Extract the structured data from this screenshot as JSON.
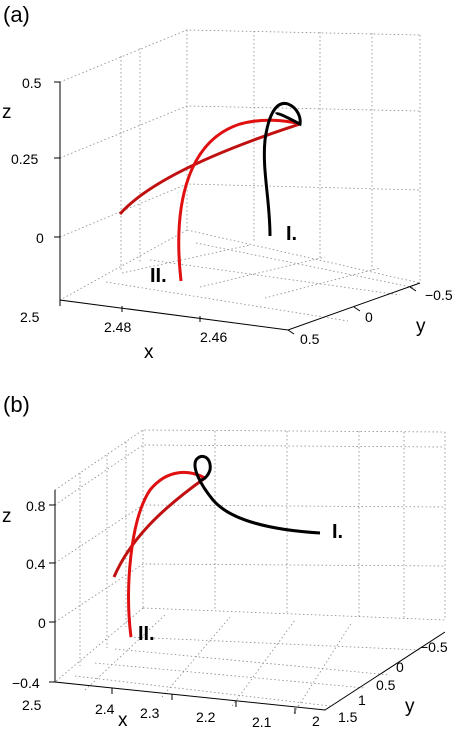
{
  "chart_data": [
    {
      "type": "line",
      "panel_label": "(a)",
      "xlabel": "x",
      "ylabel": "y",
      "zlabel": "z",
      "x_ticks": [
        "2.5",
        "2.48",
        "2.46"
      ],
      "y_ticks": [
        "−0.5",
        "0",
        "0.5"
      ],
      "z_ticks": [
        "0.5",
        "0.25",
        "0"
      ],
      "xlim": [
        2.445,
        2.5
      ],
      "ylim": [
        -0.5,
        0.5
      ],
      "zlim": [
        -0.15,
        0.5
      ],
      "grid": true,
      "series": [
        {
          "name": "I.",
          "color": "#000000",
          "points": [
            {
              "x": 2.452,
              "y": 0.05,
              "z": 0.0
            },
            {
              "x": 2.452,
              "y": 0.02,
              "z": 0.12
            },
            {
              "x": 2.454,
              "y": -0.05,
              "z": 0.24
            },
            {
              "x": 2.455,
              "y": -0.12,
              "z": 0.33
            },
            {
              "x": 2.452,
              "y": -0.2,
              "z": 0.39
            },
            {
              "x": 2.448,
              "y": -0.22,
              "z": 0.36
            },
            {
              "x": 2.45,
              "y": -0.18,
              "z": 0.31
            }
          ]
        },
        {
          "name": "II.",
          "color": "#e01010",
          "points": [
            {
              "x": 2.478,
              "y": 0.38,
              "z": -0.12
            },
            {
              "x": 2.476,
              "y": 0.3,
              "z": 0.06
            },
            {
              "x": 2.472,
              "y": 0.15,
              "z": 0.22
            },
            {
              "x": 2.465,
              "y": -0.02,
              "z": 0.31
            },
            {
              "x": 2.458,
              "y": -0.12,
              "z": 0.32
            },
            {
              "x": 2.45,
              "y": -0.18,
              "z": 0.31
            }
          ]
        },
        {
          "name": "",
          "color": "#c01010",
          "points": [
            {
              "x": 2.495,
              "y": 0.22,
              "z": 0.08
            },
            {
              "x": 2.49,
              "y": 0.12,
              "z": 0.17
            },
            {
              "x": 2.482,
              "y": 0.0,
              "z": 0.23
            },
            {
              "x": 2.472,
              "y": -0.08,
              "z": 0.27
            },
            {
              "x": 2.462,
              "y": -0.14,
              "z": 0.3
            },
            {
              "x": 2.45,
              "y": -0.18,
              "z": 0.31
            }
          ]
        }
      ]
    },
    {
      "type": "line",
      "panel_label": "(b)",
      "xlabel": "x",
      "ylabel": "y",
      "zlabel": "z",
      "x_ticks": [
        "2.5",
        "2.4",
        "2.3",
        "2.2",
        "2.1",
        "2"
      ],
      "y_ticks": [
        "−0.5",
        "0",
        "0.5",
        "1",
        "1.5"
      ],
      "z_ticks": [
        "0.8",
        "0.4",
        "0",
        "−0.4"
      ],
      "xlim": [
        2.0,
        2.5
      ],
      "ylim": [
        -0.5,
        1.5
      ],
      "zlim": [
        -0.4,
        1.0
      ],
      "grid": true,
      "series": [
        {
          "name": "I.",
          "color": "#000000",
          "points": [
            {
              "x": 2.02,
              "y": 0.2,
              "z": 0.5
            },
            {
              "x": 2.1,
              "y": 0.15,
              "z": 0.55
            },
            {
              "x": 2.18,
              "y": 0.08,
              "z": 0.64
            },
            {
              "x": 2.23,
              "y": 0.0,
              "z": 0.76
            },
            {
              "x": 2.26,
              "y": -0.1,
              "z": 0.9
            },
            {
              "x": 2.28,
              "y": -0.05,
              "z": 0.95
            },
            {
              "x": 2.27,
              "y": 0.0,
              "z": 0.86
            }
          ]
        },
        {
          "name": "II.",
          "color": "#e01010",
          "points": [
            {
              "x": 2.42,
              "y": 1.0,
              "z": -0.2
            },
            {
              "x": 2.42,
              "y": 0.85,
              "z": 0.0
            },
            {
              "x": 2.39,
              "y": 0.65,
              "z": 0.3
            },
            {
              "x": 2.35,
              "y": 0.45,
              "z": 0.55
            },
            {
              "x": 2.31,
              "y": 0.25,
              "z": 0.72
            },
            {
              "x": 2.27,
              "y": 0.0,
              "z": 0.86
            }
          ]
        },
        {
          "name": "",
          "color": "#c01010",
          "points": [
            {
              "x": 2.48,
              "y": 0.7,
              "z": 0.3
            },
            {
              "x": 2.44,
              "y": 0.55,
              "z": 0.45
            },
            {
              "x": 2.39,
              "y": 0.4,
              "z": 0.6
            },
            {
              "x": 2.34,
              "y": 0.25,
              "z": 0.72
            },
            {
              "x": 2.3,
              "y": 0.1,
              "z": 0.8
            },
            {
              "x": 2.27,
              "y": 0.0,
              "z": 0.86
            }
          ]
        }
      ]
    }
  ]
}
